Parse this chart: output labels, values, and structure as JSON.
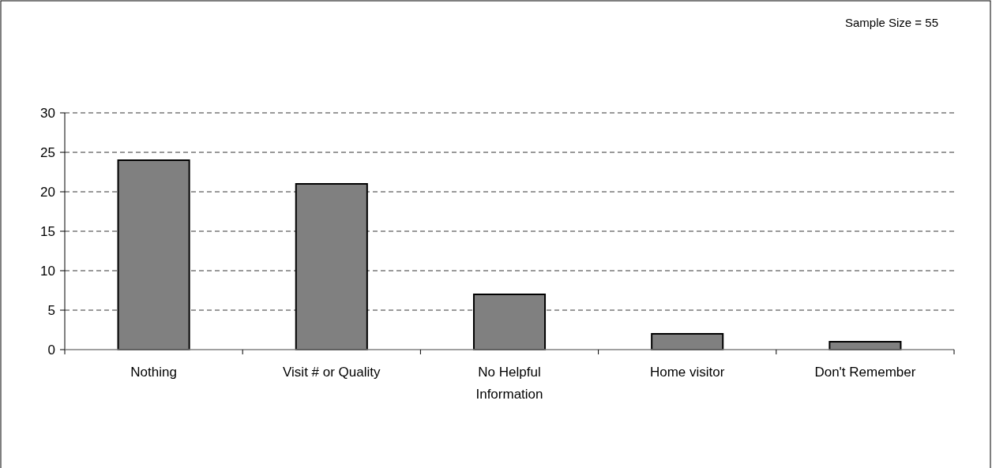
{
  "chart_data": {
    "type": "bar",
    "categories": [
      "Nothing",
      "Visit # or Quality",
      "No Helpful Information",
      "Home visitor",
      "Don't Remember"
    ],
    "values": [
      24,
      21,
      7,
      2,
      1
    ],
    "color": "#808080",
    "ylim": [
      0,
      30
    ],
    "yticks": [
      0,
      5,
      10,
      15,
      20,
      25,
      30
    ],
    "grid": "y",
    "line_style": "dashed",
    "annotations": [
      "Sample Size = 55"
    ]
  }
}
